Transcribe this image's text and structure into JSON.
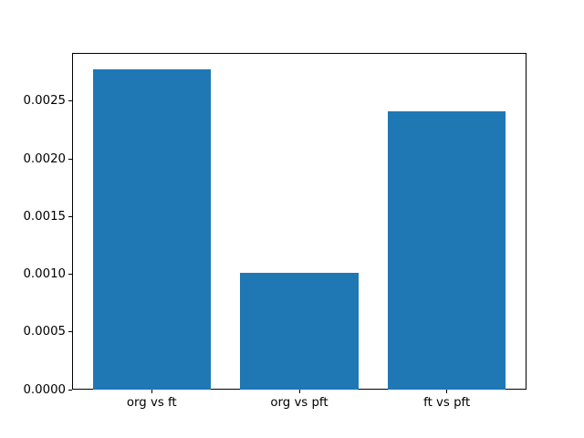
{
  "figure": {
    "background_color": "#ffffff",
    "axis_color": "#000000",
    "bar_color": "#1f77b4"
  },
  "chart_data": {
    "type": "bar",
    "title": "",
    "xlabel": "",
    "ylabel": "",
    "categories": [
      "org vs ft",
      "org vs pft",
      "ft vs pft"
    ],
    "values": [
      0.00278,
      0.00101,
      0.00241
    ],
    "ylim": [
      0,
      0.002919
    ],
    "xlim": [
      -0.54,
      2.54
    ],
    "bar_width": 0.8,
    "yticks": [
      0.0,
      0.0005,
      0.001,
      0.0015,
      0.002,
      0.0025
    ],
    "ytick_labels": [
      "0.0000",
      "0.0005",
      "0.0010",
      "0.0015",
      "0.0020",
      "0.0025"
    ],
    "grid": false,
    "legend": null
  }
}
